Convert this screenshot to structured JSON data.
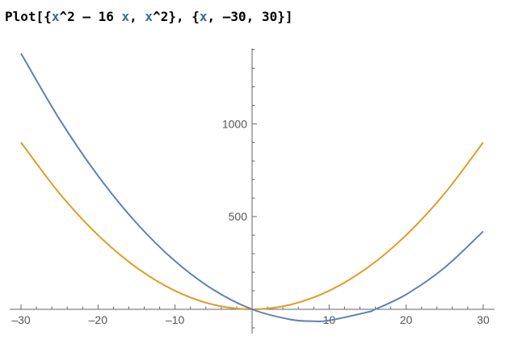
{
  "input": {
    "fn": "Plot",
    "open_bracket": "[",
    "open_brace": "{",
    "t1_var": "x",
    "t1_pow": "^2 – 16 ",
    "t1_var2": "x",
    "comma1": ", ",
    "t2_var": "x",
    "t2_pow": "^2",
    "close_brace": "}",
    "comma2": ", ",
    "open_brace2": "{",
    "r_var": "x",
    "r_rest": ", –30, 30",
    "close_brace2": "}",
    "close_bracket": "]"
  },
  "colors": {
    "series1": "#5e81b5",
    "series2": "#e19c24",
    "axis": "#666666"
  },
  "chart_data": {
    "type": "line",
    "xlim": [
      -30,
      30
    ],
    "ylim": [
      -80,
      1400
    ],
    "x_ticks": [
      -30,
      -20,
      -10,
      10,
      20,
      30
    ],
    "x_tick_labels": [
      "–30",
      "–20",
      "–10",
      "10",
      "20",
      "30"
    ],
    "y_ticks": [
      500,
      1000
    ],
    "y_tick_labels": [
      "500",
      "1000"
    ],
    "grid": false,
    "series": [
      {
        "x": [
          -30,
          -25,
          -20,
          -15,
          -10,
          -5,
          0,
          5,
          8,
          10,
          15,
          16,
          20,
          25,
          30
        ],
        "y": [
          1380,
          1025,
          720,
          465,
          260,
          105,
          0,
          -55,
          -64,
          -60,
          -15,
          0,
          80,
          225,
          420
        ]
      },
      {
        "x": [
          -30,
          -25,
          -20,
          -15,
          -10,
          -5,
          0,
          5,
          10,
          15,
          20,
          25,
          30
        ],
        "y": [
          900,
          625,
          400,
          225,
          100,
          25,
          0,
          25,
          100,
          225,
          400,
          625,
          900
        ]
      }
    ]
  }
}
